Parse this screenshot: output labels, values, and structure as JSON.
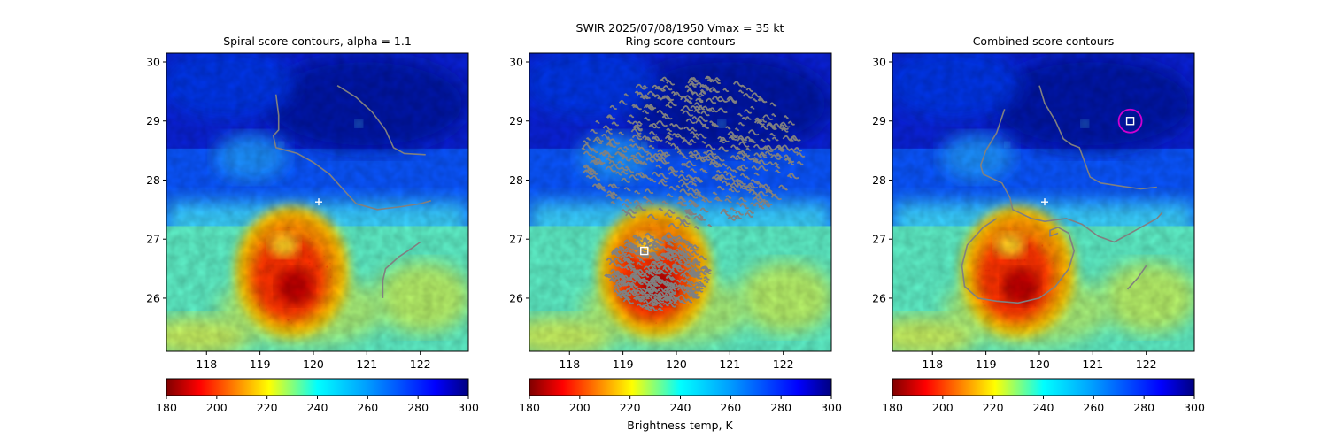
{
  "suptitle": "SWIR  2025/07/08/1950    Vmax = 35 kt",
  "colorbar_label": "Brightness temp, K",
  "colormap": "jet_r",
  "contour_color": "#808080",
  "marker_colors": {
    "plus": "#ffffff",
    "square": "#ffffff",
    "circle": "#d000d0"
  },
  "chart_data": [
    {
      "type": "heatmap",
      "title": "Spiral score contours, alpha =  1.1",
      "xlim": [
        117.25,
        122.9
      ],
      "ylim": [
        25.1,
        30.15
      ],
      "xticks": [
        118,
        119,
        120,
        121,
        122
      ],
      "yticks": [
        26,
        27,
        28,
        29,
        30
      ],
      "colorbar": {
        "vmin": 180,
        "vmax": 300,
        "ticks": [
          180,
          200,
          220,
          240,
          260,
          280,
          300
        ]
      },
      "markers": [
        {
          "type": "plus",
          "x": 120.1,
          "y": 27.63
        }
      ],
      "contours": [
        [
          [
            120.45,
            29.6
          ],
          [
            120.8,
            29.4
          ],
          [
            121.1,
            29.15
          ],
          [
            121.35,
            28.85
          ],
          [
            121.5,
            28.55
          ],
          [
            121.7,
            28.45
          ],
          [
            122.1,
            28.43
          ]
        ],
        [
          [
            119.3,
            29.45
          ],
          [
            119.35,
            29.1
          ],
          [
            119.35,
            28.85
          ],
          [
            119.25,
            28.75
          ],
          [
            119.3,
            28.55
          ],
          [
            119.7,
            28.45
          ],
          [
            120.0,
            28.3
          ],
          [
            120.3,
            28.1
          ],
          [
            120.55,
            27.85
          ],
          [
            120.8,
            27.6
          ],
          [
            121.2,
            27.5
          ],
          [
            121.65,
            27.55
          ],
          [
            122.0,
            27.6
          ],
          [
            122.2,
            27.65
          ]
        ],
        [
          [
            121.3,
            26.0
          ],
          [
            121.3,
            26.3
          ],
          [
            121.35,
            26.5
          ],
          [
            121.6,
            26.7
          ],
          [
            121.85,
            26.85
          ],
          [
            122.0,
            26.95
          ]
        ]
      ],
      "show_colorbar_label": false
    },
    {
      "type": "heatmap",
      "title": "Ring score contours",
      "xlim": [
        117.25,
        122.9
      ],
      "ylim": [
        25.1,
        30.15
      ],
      "xticks": [
        118,
        119,
        120,
        121,
        122
      ],
      "yticks": [
        26,
        27,
        28,
        29,
        30
      ],
      "colorbar": {
        "vmin": 180,
        "vmax": 300,
        "ticks": [
          180,
          200,
          220,
          240,
          260,
          280,
          300
        ]
      },
      "markers": [
        {
          "type": "square",
          "x": 119.4,
          "y": 26.8
        }
      ],
      "ring_regions": [
        {
          "cx": 120.3,
          "cy": 28.45,
          "rx": 2.05,
          "ry": 1.3
        },
        {
          "cx": 119.65,
          "cy": 26.45,
          "rx": 0.95,
          "ry": 0.65
        }
      ],
      "show_colorbar_label": true
    },
    {
      "type": "heatmap",
      "title": "Combined score contours",
      "xlim": [
        117.25,
        122.9
      ],
      "ylim": [
        25.1,
        30.15
      ],
      "xticks": [
        118,
        119,
        120,
        121,
        122
      ],
      "yticks": [
        26,
        27,
        28,
        29,
        30
      ],
      "colorbar": {
        "vmin": 180,
        "vmax": 300,
        "ticks": [
          180,
          200,
          220,
          240,
          260,
          280,
          300
        ]
      },
      "markers": [
        {
          "type": "plus",
          "x": 120.1,
          "y": 27.63
        },
        {
          "type": "square",
          "x": 121.7,
          "y": 29.0
        },
        {
          "type": "circle",
          "x": 121.7,
          "y": 29.0
        }
      ],
      "contours": [
        [
          [
            120.0,
            29.6
          ],
          [
            120.1,
            29.3
          ],
          [
            120.3,
            29.0
          ],
          [
            120.45,
            28.7
          ],
          [
            120.6,
            28.6
          ],
          [
            120.75,
            28.55
          ],
          [
            120.85,
            28.3
          ],
          [
            120.95,
            28.05
          ],
          [
            121.15,
            27.95
          ],
          [
            121.5,
            27.9
          ],
          [
            121.9,
            27.85
          ],
          [
            122.2,
            27.88
          ]
        ],
        [
          [
            119.35,
            29.2
          ],
          [
            119.2,
            28.8
          ],
          [
            119.0,
            28.5
          ],
          [
            118.9,
            28.25
          ],
          [
            118.95,
            28.1
          ],
          [
            119.3,
            27.95
          ],
          [
            119.45,
            27.7
          ],
          [
            119.5,
            27.5
          ],
          [
            119.85,
            27.35
          ],
          [
            120.1,
            27.3
          ],
          [
            120.5,
            27.35
          ],
          [
            120.8,
            27.25
          ],
          [
            121.1,
            27.05
          ],
          [
            121.4,
            26.95
          ],
          [
            121.6,
            27.05
          ],
          [
            121.9,
            27.2
          ],
          [
            122.2,
            27.35
          ],
          [
            122.3,
            27.45
          ]
        ],
        [
          [
            119.2,
            27.35
          ],
          [
            118.95,
            27.2
          ],
          [
            118.65,
            26.9
          ],
          [
            118.55,
            26.55
          ],
          [
            118.6,
            26.2
          ],
          [
            118.85,
            26.0
          ],
          [
            119.2,
            25.95
          ],
          [
            119.6,
            25.92
          ],
          [
            120.0,
            26.0
          ],
          [
            120.3,
            26.2
          ],
          [
            120.55,
            26.5
          ],
          [
            120.65,
            26.8
          ],
          [
            120.55,
            27.1
          ],
          [
            120.35,
            27.2
          ],
          [
            120.2,
            27.15
          ],
          [
            120.2,
            27.05
          ],
          [
            120.35,
            27.1
          ]
        ],
        [
          [
            121.65,
            26.15
          ],
          [
            121.85,
            26.35
          ],
          [
            122.0,
            26.55
          ]
        ]
      ],
      "show_colorbar_label": false
    }
  ]
}
